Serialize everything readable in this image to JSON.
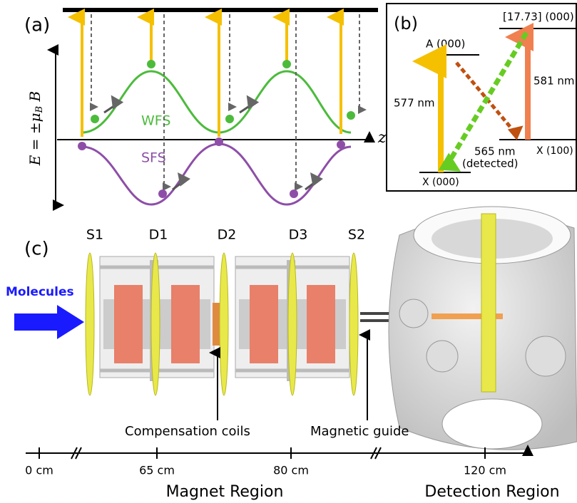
{
  "panel_a": {
    "label": "(a)",
    "energy_label": {
      "main": "E = ±μ",
      "sub": "B",
      "tail": " B"
    },
    "wfs": "WFS",
    "sfs": "SFS",
    "axis": "z"
  },
  "panel_b": {
    "label": "(b)",
    "levels": {
      "a": "A (000)",
      "upper": "[17.73] (000)",
      "x100": "X (100)",
      "x000": "X (000)"
    },
    "lines": {
      "l577": "577 nm",
      "l581": "581 nm",
      "l565": "565 nm",
      "detected": "(detected)"
    }
  },
  "panel_c": {
    "label": "(c)",
    "stages": [
      "S1",
      "D1",
      "D2",
      "D3",
      "S2"
    ],
    "molecules": "Molecules",
    "compensation": "Compensation coils",
    "guide": "Magnetic guide",
    "positions": [
      "0 cm",
      "65 cm",
      "80 cm",
      "120 cm"
    ],
    "regions": {
      "magnet": "Magnet Region",
      "detection": "Detection Region"
    }
  }
}
